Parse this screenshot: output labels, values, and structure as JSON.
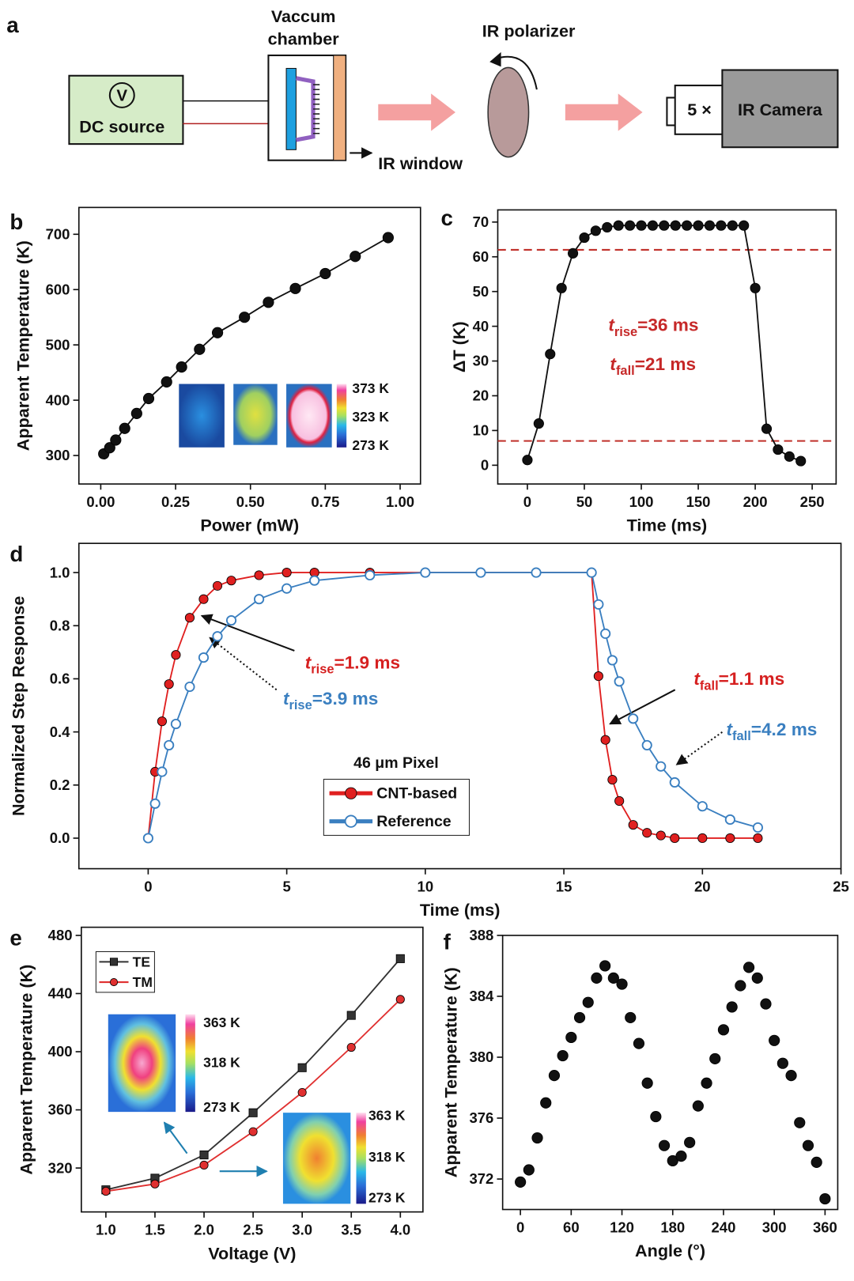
{
  "diagram": {
    "panel_label": "a",
    "chamber_label": [
      "Vaccum",
      "chamber"
    ],
    "source_label": "DC source",
    "meter_label": "V",
    "polarizer_label": "IR polarizer",
    "window_label": "IR window",
    "lens_label": "5 ×",
    "camera_label": "IR Camera"
  },
  "chart_data": [
    {
      "panel_label": "b",
      "type": "line",
      "x_label": "Power (mW)",
      "y_label": "Apparent Temperature (K)",
      "x": [
        0.01,
        0.03,
        0.05,
        0.08,
        0.12,
        0.16,
        0.22,
        0.27,
        0.33,
        0.39,
        0.48,
        0.56,
        0.65,
        0.75,
        0.85,
        0.96
      ],
      "series": [
        {
          "color": "#111111",
          "values": [
            303,
            314,
            328,
            349,
            376,
            403,
            433,
            460,
            492,
            522,
            550,
            577,
            602,
            629,
            660,
            694
          ]
        }
      ],
      "xlim": [
        -0.073,
        1.068
      ],
      "xticks": [
        {
          "value": 0,
          "label": "0.00"
        },
        {
          "value": 0.25,
          "label": "0.25"
        },
        {
          "value": 0.5,
          "label": "0.50"
        },
        {
          "value": 0.75,
          "label": "0.75"
        },
        {
          "value": 1,
          "label": "1.00"
        }
      ],
      "ylim": [
        248.5,
        748.5
      ],
      "yticks": [
        300,
        400,
        500,
        600,
        700
      ],
      "inset_labels": [
        "373 K",
        "323 K",
        "273 K"
      ]
    },
    {
      "panel_label": "c",
      "type": "line",
      "x_label": "Time (ms)",
      "y_label": "ΔT (K)",
      "x": [
        0,
        10,
        20,
        30,
        40,
        50,
        60,
        70,
        80,
        90,
        100,
        110,
        120,
        130,
        140,
        150,
        160,
        170,
        180,
        190,
        200,
        210,
        220,
        230,
        240
      ],
      "series": [
        {
          "color": "#111111",
          "values": [
            1.5,
            12,
            32,
            51,
            61,
            65.5,
            67.5,
            68.5,
            69,
            69,
            69,
            69,
            69,
            69,
            69,
            69,
            69,
            69,
            69,
            69,
            51,
            10.5,
            4.5,
            2.5,
            1.2
          ]
        }
      ],
      "xlim": [
        -26,
        271
      ],
      "xticks": [
        0,
        50,
        100,
        150,
        200,
        250
      ],
      "ylim": [
        -5.4,
        73.5
      ],
      "yticks": [
        0,
        10,
        20,
        30,
        40,
        50,
        60,
        70
      ],
      "hlines": [
        62,
        7
      ],
      "hline_color": "#c0302a",
      "annotations": [
        {
          "t": "t",
          "sub": "rise",
          "text": "=36 ms",
          "color": "#c62828"
        },
        {
          "t": "t",
          "sub": "fall",
          "text": "=21 ms",
          "color": "#c62828"
        }
      ]
    },
    {
      "panel_label": "d",
      "type": "line",
      "x_label": "Time (ms)",
      "y_label": "Normalized Step Response",
      "x": [
        0,
        0.25,
        0.5,
        0.75,
        1,
        1.5,
        2,
        2.5,
        3,
        4,
        5,
        6,
        8,
        10,
        12,
        14,
        16,
        16.25,
        16.5,
        16.75,
        17,
        17.5,
        18,
        18.5,
        19,
        20,
        21,
        22
      ],
      "series": [
        {
          "name": "CNT-based",
          "color": "#e02020",
          "marker_fill": "filled",
          "values": [
            0,
            0.25,
            0.44,
            0.58,
            0.69,
            0.83,
            0.9,
            0.95,
            0.97,
            0.99,
            1,
            1,
            1,
            1,
            1,
            1,
            1,
            0.61,
            0.37,
            0.22,
            0.14,
            0.05,
            0.02,
            0.01,
            0,
            0,
            0,
            0
          ]
        },
        {
          "name": "Reference",
          "color": "#3a7fc0",
          "marker_fill": "open",
          "values": [
            0,
            0.13,
            0.25,
            0.35,
            0.43,
            0.57,
            0.68,
            0.76,
            0.82,
            0.9,
            0.94,
            0.97,
            0.99,
            1,
            1,
            1,
            1,
            0.88,
            0.77,
            0.67,
            0.59,
            0.45,
            0.35,
            0.27,
            0.21,
            0.12,
            0.07,
            0.04
          ]
        }
      ],
      "xlim": [
        -2.5,
        25
      ],
      "xticks": [
        0,
        5,
        10,
        15,
        20,
        25
      ],
      "ylim": [
        -0.115,
        1.11
      ],
      "yticks": [
        {
          "value": 0,
          "label": "0.0"
        },
        {
          "value": 0.2,
          "label": "0.2"
        },
        {
          "value": 0.4,
          "label": "0.4"
        },
        {
          "value": 0.6,
          "label": "0.6"
        },
        {
          "value": 0.8,
          "label": "0.8"
        },
        {
          "value": 1,
          "label": "1.0"
        }
      ],
      "legend_title": "46 μm Pixel",
      "annotations": [
        {
          "t": "t",
          "sub": "rise",
          "text": "=1.9 ms",
          "color": "#d62020"
        },
        {
          "t": "t",
          "sub": "rise",
          "text": "=3.9 ms",
          "color": "#3a7fc0"
        },
        {
          "t": "t",
          "sub": "fall",
          "text": "=1.1 ms",
          "color": "#d62020"
        },
        {
          "t": "t",
          "sub": "fall",
          "text": "=4.2 ms",
          "color": "#3a7fc0"
        }
      ]
    },
    {
      "panel_label": "e",
      "type": "line",
      "x_label": "Voltage (V)",
      "y_label": "Apparent Temperature (K)",
      "x": [
        1,
        1.5,
        2,
        2.5,
        3,
        3.5,
        4
      ],
      "series": [
        {
          "name": "TE",
          "color": "#333333",
          "marker": "square",
          "values": [
            305,
            313,
            329,
            358,
            389,
            425,
            464
          ]
        },
        {
          "name": "TM",
          "color": "#e03030",
          "marker": "circle",
          "values": [
            304,
            309,
            322,
            345,
            372,
            403,
            436
          ]
        }
      ],
      "xlim": [
        0.75,
        4.23
      ],
      "xticks": [
        {
          "value": 1,
          "label": "1.0"
        },
        {
          "value": 1.5,
          "label": "1.5"
        },
        {
          "value": 2,
          "label": "2.0"
        },
        {
          "value": 2.5,
          "label": "2.5"
        },
        {
          "value": 3,
          "label": "3.0"
        },
        {
          "value": 3.5,
          "label": "3.5"
        },
        {
          "value": 4,
          "label": "4.0"
        }
      ],
      "ylim": [
        289.8,
        485.6
      ],
      "yticks": [
        320,
        360,
        400,
        440,
        480
      ],
      "insets": [
        [
          "363 K",
          "318 K",
          "273 K"
        ],
        [
          "363 K",
          "318 K",
          "273 K"
        ]
      ]
    },
    {
      "panel_label": "f",
      "type": "scatter",
      "x_label": "Angle (°)",
      "y_label": "Apparent Temperature (K)",
      "x": [
        0,
        10,
        20,
        30,
        40,
        50,
        60,
        70,
        80,
        90,
        100,
        110,
        120,
        130,
        140,
        150,
        160,
        170,
        180,
        190,
        200,
        210,
        220,
        230,
        240,
        250,
        260,
        270,
        280,
        290,
        300,
        310,
        320,
        330,
        340,
        350,
        360
      ],
      "series": [
        {
          "color": "#111111",
          "values": [
            371.8,
            372.6,
            374.7,
            377,
            378.8,
            380.1,
            381.3,
            382.6,
            383.6,
            385.2,
            386,
            385.2,
            384.8,
            382.6,
            380.9,
            378.3,
            376.1,
            374.2,
            373.2,
            373.5,
            374.4,
            376.8,
            378.3,
            379.9,
            381.8,
            383.3,
            384.7,
            385.9,
            385.2,
            383.5,
            381.1,
            379.6,
            378.8,
            375.7,
            374.2,
            373.1,
            370.7
          ]
        }
      ],
      "xlim": [
        -21,
        375
      ],
      "xticks": [
        0,
        60,
        120,
        180,
        240,
        300,
        360
      ],
      "ylim": [
        370,
        388
      ],
      "yticks": [
        372,
        376,
        380,
        384,
        388
      ]
    }
  ]
}
